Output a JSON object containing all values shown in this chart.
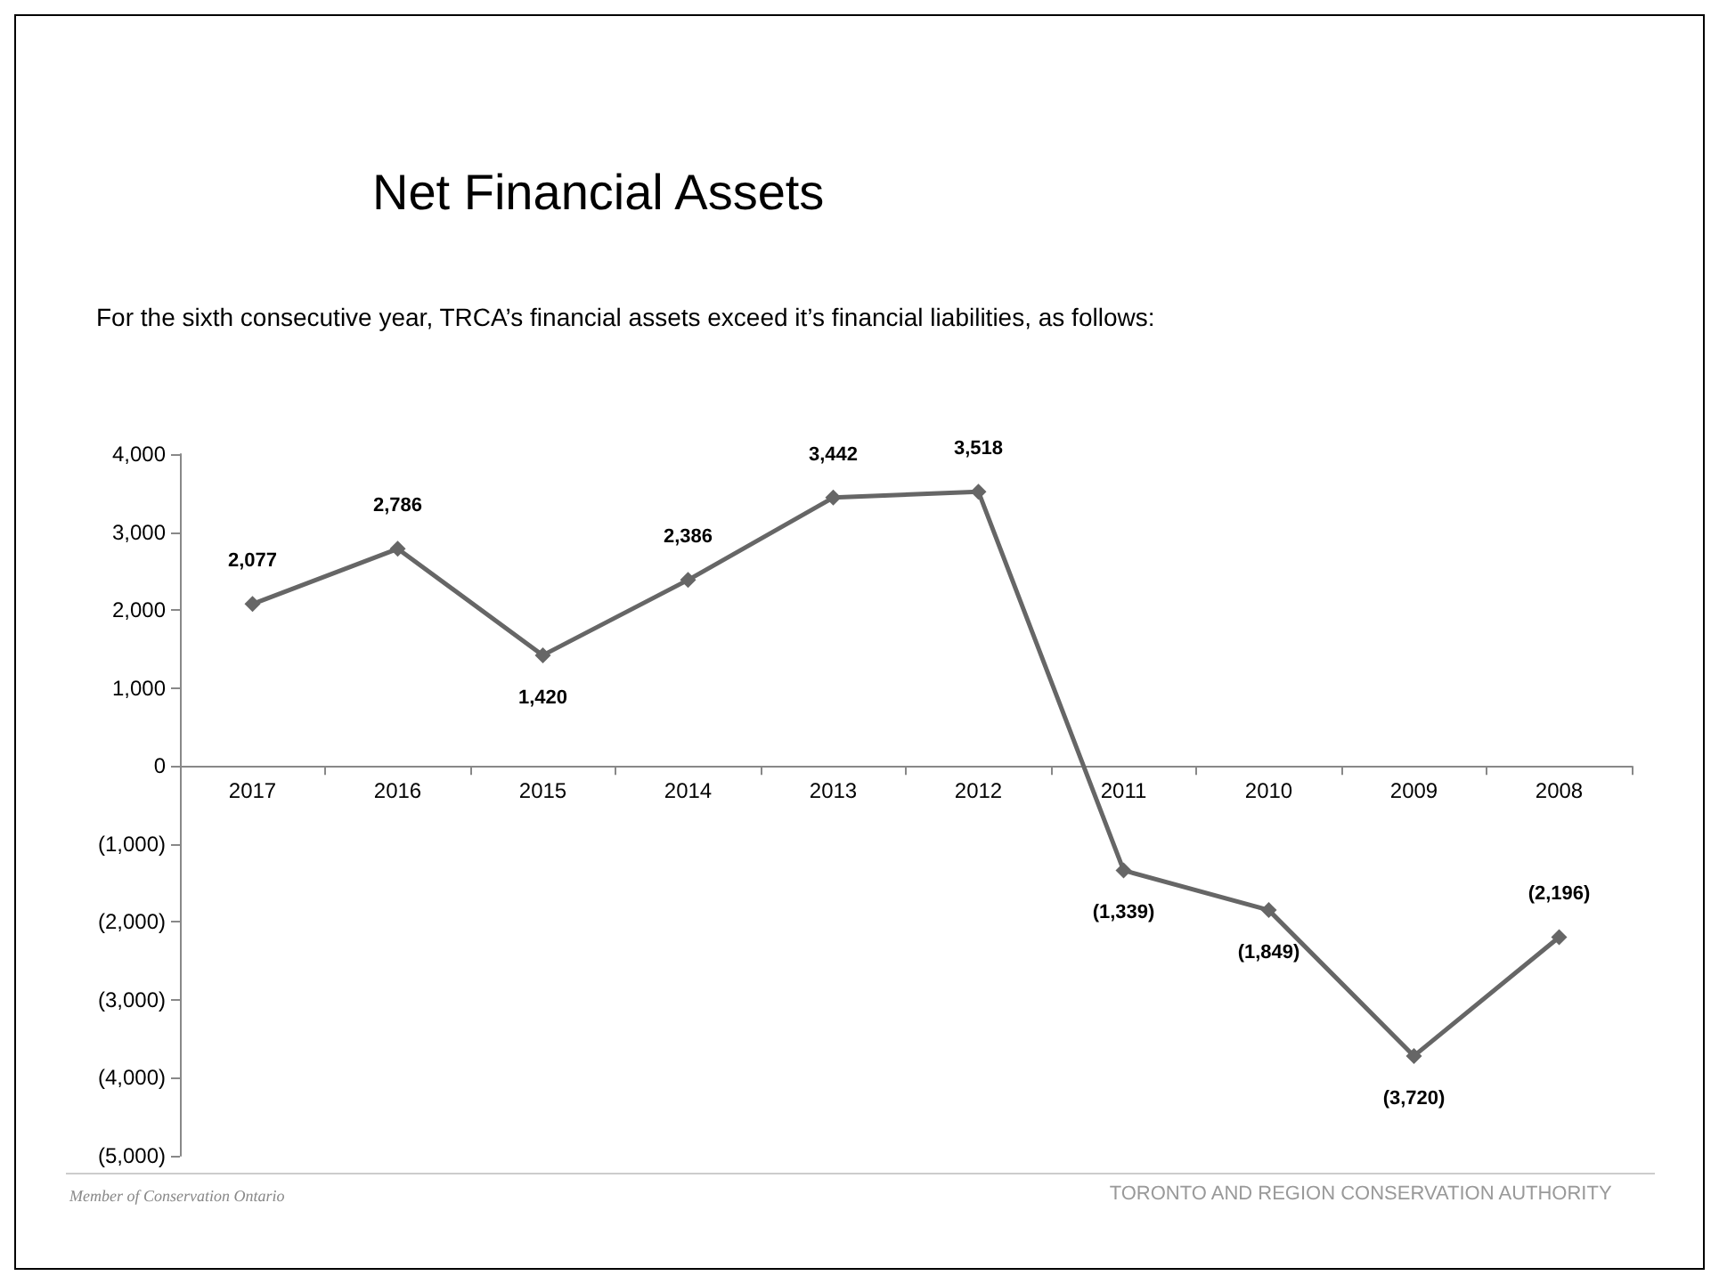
{
  "chart_data": {
    "type": "line",
    "title": "Net Financial Assets",
    "subtitle": "For the sixth consecutive year, TRCA’s financial assets exceed it’s financial liabilities, as follows:",
    "categories": [
      "2017",
      "2016",
      "2015",
      "2014",
      "2013",
      "2012",
      "2011",
      "2010",
      "2009",
      "2008"
    ],
    "series": [
      {
        "color": "#666666",
        "values": [
          2077,
          2786,
          1420,
          2386,
          3442,
          3518,
          -1339,
          -1849,
          -3720,
          -2196
        ],
        "value_labels": [
          "2,077",
          "2,786",
          "1,420",
          "2,386",
          "3,442",
          "3,518",
          "(1,339)",
          "(1,849)",
          "(3,720)",
          "(2,196)"
        ]
      }
    ],
    "ylim": [
      -5000,
      4000
    ],
    "yticks": [
      {
        "value": -5000,
        "label": "(5,000)"
      },
      {
        "value": -4000,
        "label": "(4,000)"
      },
      {
        "value": -3000,
        "label": "(3,000)"
      },
      {
        "value": -2000,
        "label": "(2,000)"
      },
      {
        "value": -1000,
        "label": "(1,000)"
      },
      {
        "value": 0,
        "label": "0"
      },
      {
        "value": 1000,
        "label": "1,000"
      },
      {
        "value": 2000,
        "label": "2,000"
      },
      {
        "value": 3000,
        "label": "3,000"
      },
      {
        "value": 4000,
        "label": "4,000"
      }
    ],
    "marker": "diamond",
    "line_style": "solid",
    "grid": false,
    "annotations": [
      "Member of Conservation Ontario",
      "TORONTO AND REGION CONSERVATION AUTHORITY"
    ]
  }
}
